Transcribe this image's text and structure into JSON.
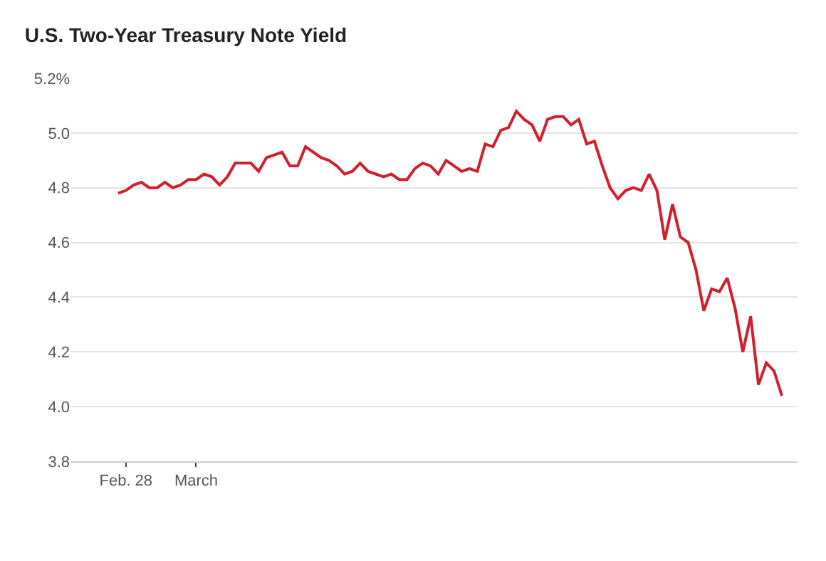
{
  "chart_data": {
    "type": "line",
    "title": "U.S. Two-Year Treasury Note Yield",
    "categories": [
      null,
      "Feb. 28",
      null,
      null,
      null,
      null,
      null,
      null,
      null,
      null,
      "March",
      null,
      null,
      null,
      null,
      null,
      null,
      null,
      null,
      null,
      null,
      null,
      null,
      null,
      null,
      null,
      null,
      null,
      null,
      null,
      null,
      null,
      null,
      null,
      null,
      null,
      null,
      null,
      null,
      null,
      null,
      null,
      null,
      null,
      null,
      null,
      null,
      null,
      null,
      null,
      null,
      null,
      null,
      null,
      null,
      null,
      null,
      null,
      null,
      null,
      null,
      null,
      null,
      null,
      null,
      null,
      null,
      null,
      null,
      null,
      null,
      null,
      null,
      null,
      null,
      null,
      null,
      null,
      null,
      null,
      null,
      null,
      null,
      null,
      null,
      null
    ],
    "series": [
      {
        "color": "#d0202e",
        "values": [
          4.78,
          4.79,
          4.81,
          4.82,
          4.8,
          4.8,
          4.82,
          4.8,
          4.81,
          4.83,
          4.83,
          4.85,
          4.84,
          4.81,
          4.84,
          4.89,
          4.89,
          4.89,
          4.86,
          4.91,
          4.92,
          4.93,
          4.88,
          4.88,
          4.95,
          4.93,
          4.91,
          4.9,
          4.88,
          4.85,
          4.86,
          4.89,
          4.86,
          4.85,
          4.84,
          4.85,
          4.83,
          4.83,
          4.87,
          4.89,
          4.88,
          4.85,
          4.9,
          4.88,
          4.86,
          4.87,
          4.86,
          4.96,
          4.95,
          5.01,
          5.02,
          5.08,
          5.05,
          5.03,
          4.97,
          5.05,
          5.06,
          5.06,
          5.03,
          5.05,
          4.96,
          4.97,
          4.88,
          4.8,
          4.76,
          4.79,
          4.8,
          4.79,
          4.85,
          4.79,
          4.61,
          4.74,
          4.62,
          4.6,
          4.5,
          4.35,
          4.43,
          4.42,
          4.47,
          4.36,
          4.2,
          4.33,
          4.08,
          4.16,
          4.13,
          4.04
        ]
      }
    ],
    "ylim": [
      3.8,
      5.2
    ],
    "yticks": [
      3.8,
      {
        "value": 4,
        "label": "4.0"
      },
      4.2,
      4.4,
      4.6,
      4.8,
      {
        "value": 5,
        "label": "5.0"
      },
      {
        "value": 5.2,
        "label": "5.2%"
      }
    ],
    "grid": "y",
    "marker": "none",
    "line_style": "solid"
  }
}
